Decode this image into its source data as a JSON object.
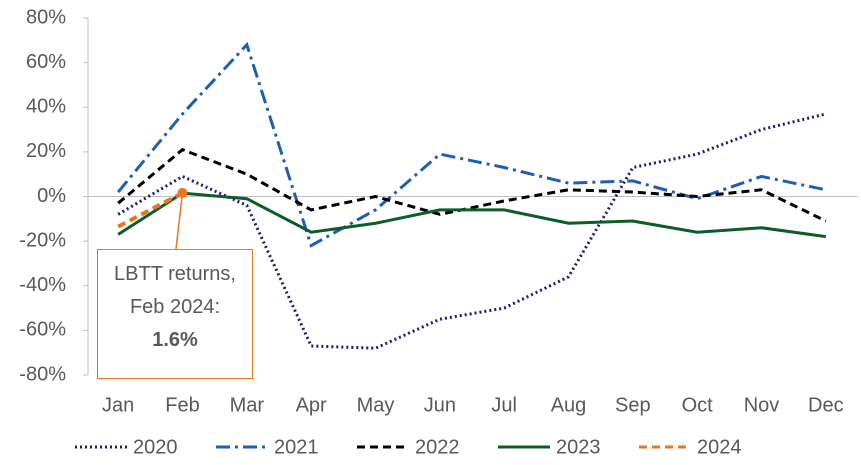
{
  "chart_data": {
    "type": "line",
    "categories": [
      "Jan",
      "Feb",
      "Mar",
      "Apr",
      "May",
      "Jun",
      "Jul",
      "Aug",
      "Sep",
      "Oct",
      "Nov",
      "Dec"
    ],
    "series": [
      {
        "name": "2020",
        "color": "#1f1a6e",
        "dash": "dotted",
        "values": [
          -8,
          9,
          -4,
          -67,
          -68,
          -55,
          -50,
          -36,
          13,
          19,
          30,
          37
        ]
      },
      {
        "name": "2021",
        "color": "#1f5fb0",
        "dash": "dashdot",
        "values": [
          2,
          37,
          68,
          -22,
          -6,
          19,
          13,
          6,
          7,
          -1,
          9,
          3
        ]
      },
      {
        "name": "2022",
        "color": "#000000",
        "dash": "dashed",
        "values": [
          -3,
          21,
          10,
          -6,
          0,
          -8,
          -2,
          3,
          2,
          0,
          3,
          -11
        ]
      },
      {
        "name": "2023",
        "color": "#0d5c2a",
        "dash": "solid",
        "values": [
          -17,
          1.5,
          -1,
          -16,
          -12,
          -6,
          -6,
          -12,
          -11,
          -16,
          -14,
          -18
        ]
      },
      {
        "name": "2024",
        "color": "#e87722",
        "dash": "dashed",
        "values": [
          -13.5,
          1.6,
          null,
          null,
          null,
          null,
          null,
          null,
          null,
          null,
          null,
          null
        ]
      }
    ],
    "ylim": [
      -80,
      80
    ],
    "yticks": [
      {
        "value": -80,
        "label": "-80%"
      },
      {
        "value": -60,
        "label": "-60%"
      },
      {
        "value": -40,
        "label": "-40%"
      },
      {
        "value": -20,
        "label": "-20%"
      },
      {
        "value": 0,
        "label": "0%"
      },
      {
        "value": 20,
        "label": "20%"
      },
      {
        "value": 40,
        "label": "40%"
      },
      {
        "value": 60,
        "label": "60%"
      },
      {
        "value": 80,
        "label": "80%"
      }
    ],
    "grid": false,
    "legend": "bottom",
    "annotation": {
      "text": "LBTT returns, Feb 2024:",
      "value_label": "1.6%"
    }
  }
}
